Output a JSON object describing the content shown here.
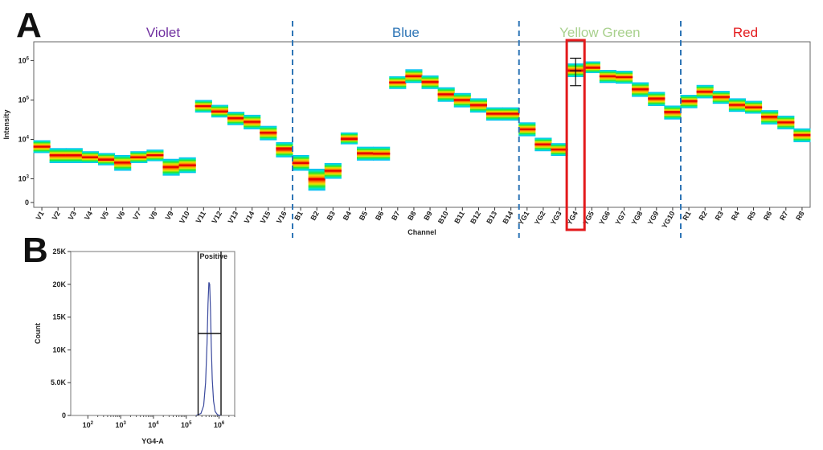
{
  "panel_labels": {
    "a": "A",
    "b": "B"
  },
  "chart_data": [
    {
      "type": "heatmap",
      "panel": "A",
      "xlabel": "Channel",
      "ylabel": "Intensity",
      "y_scale": "log",
      "ylim": [
        0,
        3000000
      ],
      "y_ticks": [
        {
          "value": 0,
          "label": "0"
        },
        {
          "value": 1000,
          "label": "10^3"
        },
        {
          "value": 10000,
          "label": "10^4"
        },
        {
          "value": 100000,
          "label": "10^5"
        },
        {
          "value": 1000000,
          "label": "10^6"
        }
      ],
      "grid": false,
      "colormap": [
        "#1e3cff",
        "#00b4ff",
        "#00e6c8",
        "#28e628",
        "#e6e600",
        "#ff8c00",
        "#e60000"
      ],
      "regions": [
        {
          "name": "Violet",
          "color": "#7030a0",
          "first_channel": "V1",
          "last_channel": "V16"
        },
        {
          "name": "Blue",
          "color": "#2e75b6",
          "first_channel": "B1",
          "last_channel": "B14"
        },
        {
          "name": "Yellow Green",
          "color": "#a9d18e",
          "first_channel": "YG1",
          "last_channel": "YG10"
        },
        {
          "name": "Red",
          "color": "#e31a1c",
          "first_channel": "R1",
          "last_channel": "R8"
        }
      ],
      "divider_color": "#2e75b6",
      "highlight": {
        "channel": "YG4",
        "color": "#e31a1c",
        "marker_low": 230000,
        "marker_high": 1150000
      },
      "categories": [
        "V1",
        "V2",
        "V3",
        "V4",
        "V5",
        "V6",
        "V7",
        "V8",
        "V9",
        "V10",
        "V11",
        "V12",
        "V13",
        "V14",
        "V15",
        "V16",
        "B1",
        "B2",
        "B3",
        "B4",
        "B5",
        "B6",
        "B7",
        "B8",
        "B9",
        "B10",
        "B11",
        "B12",
        "B13",
        "B14",
        "YG1",
        "YG2",
        "YG3",
        "YG4",
        "YG5",
        "YG6",
        "YG7",
        "YG8",
        "YG9",
        "YG10",
        "R1",
        "R2",
        "R3",
        "R4",
        "R5",
        "R6",
        "R7",
        "R8"
      ],
      "median": [
        6500,
        4000,
        4000,
        3500,
        3000,
        2600,
        3500,
        4000,
        2000,
        2200,
        70000,
        50000,
        35000,
        28000,
        15000,
        6000,
        2500,
        1000,
        1600,
        10000,
        4500,
        4300,
        280000,
        400000,
        290000,
        140000,
        100000,
        75000,
        45000,
        45000,
        18000,
        7500,
        5500,
        550000,
        650000,
        400000,
        380000,
        190000,
        110000,
        50000,
        95000,
        160000,
        120000,
        75000,
        65000,
        38000,
        27000,
        13000
      ],
      "spread_low": [
        4500,
        2500,
        2500,
        2500,
        2200,
        1600,
        2500,
        2800,
        1200,
        1400,
        48000,
        36000,
        23000,
        18000,
        9500,
        3500,
        1600,
        500,
        1000,
        7500,
        2900,
        2900,
        190000,
        270000,
        190000,
        90000,
        65000,
        48000,
        30000,
        30000,
        12000,
        5000,
        3800,
        380000,
        480000,
        270000,
        260000,
        120000,
        70000,
        32000,
        62000,
        110000,
        80000,
        50000,
        45000,
        24000,
        18000,
        8500
      ],
      "spread_high": [
        9500,
        6000,
        6000,
        5000,
        4500,
        4000,
        5000,
        5500,
        3200,
        3500,
        100000,
        75000,
        50000,
        42000,
        22000,
        8500,
        4000,
        1800,
        2500,
        15000,
        6500,
        6500,
        400000,
        600000,
        420000,
        210000,
        150000,
        110000,
        65000,
        65000,
        27000,
        11000,
        8000,
        850000,
        950000,
        580000,
        550000,
        280000,
        160000,
        72000,
        135000,
        240000,
        170000,
        110000,
        95000,
        55000,
        40000,
        19000
      ]
    },
    {
      "type": "line",
      "panel": "B",
      "xlabel": "YG4-A",
      "ylabel": "Count",
      "x_scale": "log",
      "xlim": [
        30,
        3000000
      ],
      "ylim": [
        0,
        25000
      ],
      "x_ticks": [
        {
          "value": 100,
          "label": "10^2"
        },
        {
          "value": 1000,
          "label": "10^3"
        },
        {
          "value": 10000,
          "label": "10^4"
        },
        {
          "value": 100000,
          "label": "10^5"
        },
        {
          "value": 1000000,
          "label": "10^6"
        }
      ],
      "y_ticks": [
        {
          "value": 0,
          "label": "0"
        },
        {
          "value": 5000,
          "label": "5.0K"
        },
        {
          "value": 10000,
          "label": "10K"
        },
        {
          "value": 15000,
          "label": "15K"
        },
        {
          "value": 20000,
          "label": "20K"
        },
        {
          "value": 25000,
          "label": "25K"
        }
      ],
      "line_color": "#3b4a9e",
      "series": [
        {
          "x": [
            200000,
            280000,
            340000,
            390000,
            430000,
            460000,
            490000,
            520000,
            550000,
            580000,
            620000,
            680000,
            760000,
            900000,
            1100000
          ],
          "y": [
            0,
            300,
            1500,
            5000,
            11000,
            17000,
            20300,
            20000,
            16000,
            10500,
            5500,
            2200,
            600,
            100,
            0
          ]
        }
      ],
      "gate": {
        "label": "Positive",
        "x_low": 230000,
        "x_high": 1150000,
        "y_line": 12500
      }
    }
  ]
}
